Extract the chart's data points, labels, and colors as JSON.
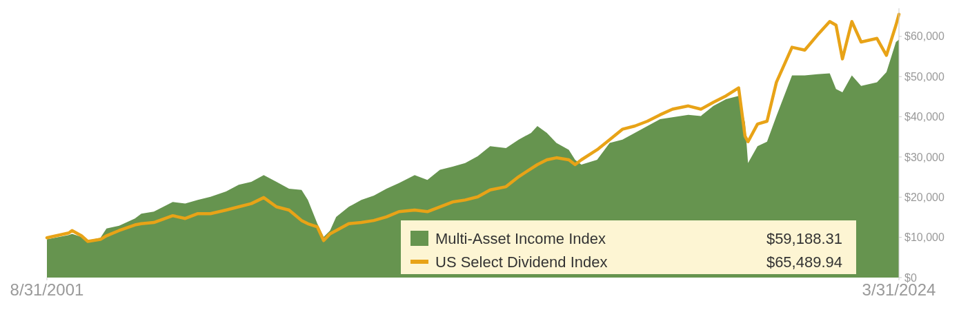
{
  "chart_data": {
    "type": "area",
    "xlim": [
      "2001-08",
      "2024-03"
    ],
    "xticks": [
      {
        "value": "2001-08",
        "label": "8/31/2001"
      },
      {
        "value": "2024-03",
        "label": "3/31/2024"
      }
    ],
    "ylim": [
      0,
      67000
    ],
    "yticks": [
      {
        "value": 0,
        "label": "$0"
      },
      {
        "value": 10000,
        "label": "$10,000"
      },
      {
        "value": 20000,
        "label": "$20,000"
      },
      {
        "value": 30000,
        "label": "$30,000"
      },
      {
        "value": 40000,
        "label": "$40,000"
      },
      {
        "value": 50000,
        "label": "$50,000"
      },
      {
        "value": 60000,
        "label": "$60,000"
      }
    ],
    "grid": false,
    "legend": "bottom right",
    "x": [
      "2001-08",
      "2002-03",
      "2002-04",
      "2002-07",
      "2002-09",
      "2003-01",
      "2003-03",
      "2003-07",
      "2003-12",
      "2004-02",
      "2004-06",
      "2004-12",
      "2005-04",
      "2005-08",
      "2005-12",
      "2006-05",
      "2006-09",
      "2007-01",
      "2007-05",
      "2007-09",
      "2008-01",
      "2008-05",
      "2008-07",
      "2008-10",
      "2008-12",
      "2009-02",
      "2009-04",
      "2009-08",
      "2009-12",
      "2010-04",
      "2010-08",
      "2010-12",
      "2011-05",
      "2011-09",
      "2012-01",
      "2012-05",
      "2012-09",
      "2013-01",
      "2013-05",
      "2013-10",
      "2014-02",
      "2014-06",
      "2014-08",
      "2014-11",
      "2015-02",
      "2015-06",
      "2015-08",
      "2015-10",
      "2016-03",
      "2016-07",
      "2016-11",
      "2017-03",
      "2017-07",
      "2017-11",
      "2018-03",
      "2018-08",
      "2018-12",
      "2019-04",
      "2019-08",
      "2019-12",
      "2020-02",
      "2020-03",
      "2020-06",
      "2020-09",
      "2020-12",
      "2021-05",
      "2021-09",
      "2022-01",
      "2022-05",
      "2022-07",
      "2022-09",
      "2022-12",
      "2023-03",
      "2023-08",
      "2023-11",
      "2024-02",
      "2024-03"
    ],
    "series": [
      {
        "name": "Multi-Asset Income Index",
        "color": "#66944f",
        "values": [
          9500,
          10600,
          10900,
          10100,
          9200,
          9900,
          12200,
          12900,
          14700,
          15900,
          16400,
          18800,
          18400,
          19300,
          20100,
          21400,
          23100,
          23800,
          25500,
          23800,
          22100,
          21800,
          19300,
          13400,
          10100,
          11700,
          15100,
          17600,
          19300,
          20400,
          22100,
          23500,
          25500,
          24300,
          26800,
          27600,
          28500,
          30200,
          32700,
          32200,
          34300,
          36000,
          37700,
          36000,
          33500,
          31800,
          29300,
          28100,
          29300,
          33500,
          34300,
          36000,
          37700,
          39400,
          39900,
          40500,
          40200,
          42700,
          44400,
          45200,
          38500,
          28500,
          32700,
          33800,
          40200,
          50300,
          50300,
          50600,
          50800,
          46900,
          46100,
          50300,
          47700,
          48600,
          51100,
          58600,
          59200
        ]
      },
      {
        "name": "US Select Dividend Index",
        "type": "line",
        "color": "#e8a317",
        "values": [
          9900,
          11100,
          11700,
          10400,
          9000,
          9500,
          10400,
          11700,
          13100,
          13400,
          13700,
          15400,
          14700,
          15900,
          15900,
          16800,
          17600,
          18400,
          19900,
          17600,
          16800,
          14200,
          13400,
          12600,
          9200,
          10900,
          11700,
          13400,
          13700,
          14200,
          15100,
          16400,
          16800,
          16400,
          17600,
          18800,
          19300,
          20100,
          21800,
          22600,
          25100,
          27100,
          28100,
          29300,
          29800,
          29300,
          28100,
          29300,
          31800,
          34300,
          36900,
          37700,
          38900,
          40500,
          41900,
          42700,
          41900,
          43600,
          45200,
          47200,
          35200,
          33800,
          38200,
          38900,
          48600,
          57300,
          56600,
          60300,
          63700,
          62800,
          54400,
          63700,
          58600,
          59500,
          55300,
          62800,
          65500
        ]
      }
    ],
    "annotations": [
      "$59,188.31",
      "$65,489.94"
    ]
  }
}
